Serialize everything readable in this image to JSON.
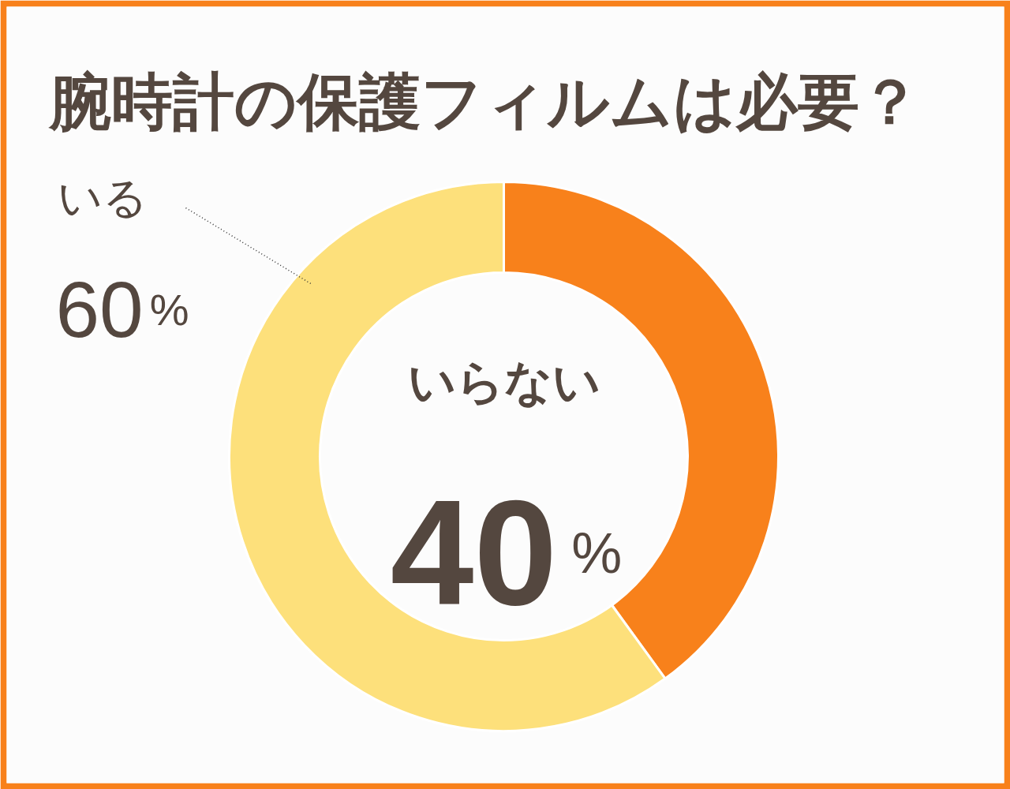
{
  "chart_data": {
    "type": "donut",
    "title": "腕時計の保護フィルムは必要？",
    "categories": [
      "いらない",
      "いる"
    ],
    "values": [
      40,
      60
    ],
    "colors": [
      "#f8811b",
      "#fde07b"
    ],
    "value_labels": [
      "40%",
      "60%"
    ]
  }
}
